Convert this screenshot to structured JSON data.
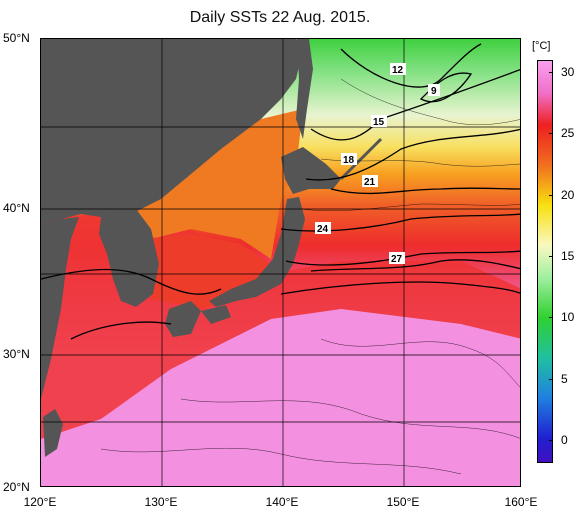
{
  "title": "Daily SSTs 22 Aug. 2015.",
  "lat_labels": [
    "50°N",
    "40°N",
    "30°N",
    "20°N"
  ],
  "lon_labels": [
    "120°E",
    "130°E",
    "140°E",
    "150°E",
    "160°E"
  ],
  "colorbar": {
    "unit": "[°C]",
    "ticks": [
      "30",
      "25",
      "20",
      "15",
      "10",
      "5",
      "0"
    ]
  },
  "contour_labels": [
    "12",
    "9",
    "15",
    "18",
    "21",
    "24",
    "27"
  ],
  "colors": {
    "land": "#555555",
    "ocean_hot": "#f48ee0",
    "ocean_27": "#ef3030",
    "ocean_24": "#f06020",
    "ocean_21": "#f8b020",
    "ocean_18": "#f8e860",
    "ocean_15": "#f0f0c8",
    "ocean_12": "#a0e8a0",
    "ocean_9": "#40d040"
  }
}
